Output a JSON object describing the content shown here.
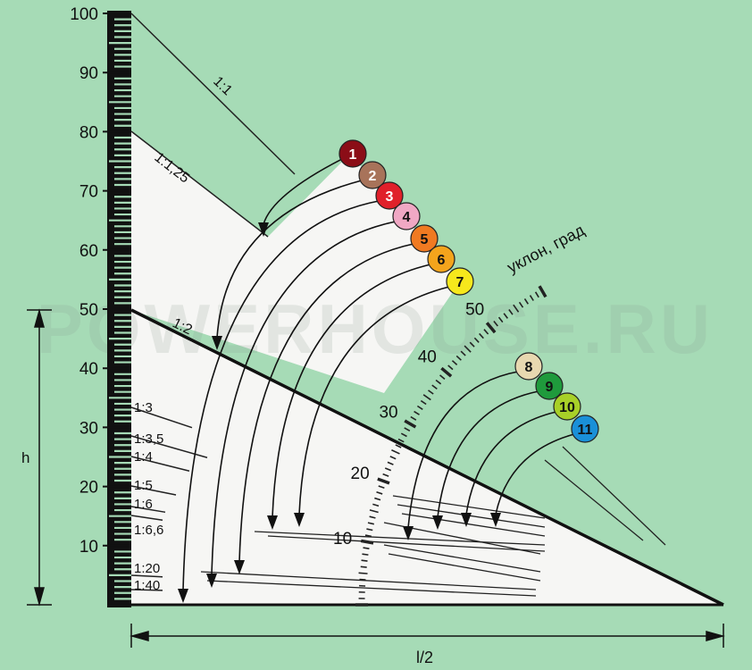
{
  "watermark": "POWERHOUSE.RU",
  "y_axis": {
    "ticks": [
      "10",
      "20",
      "30",
      "40",
      "50",
      "60",
      "70",
      "80",
      "90",
      "100"
    ]
  },
  "dimension_labels": {
    "height": "h",
    "half_span": "l/2"
  },
  "slopes": {
    "s1_1": "1:1",
    "s1_125": "1:1,25",
    "s1_2": "1:2",
    "s1_3": "1:3",
    "s1_35": "1:3,5",
    "s1_4": "1:4",
    "s1_5": "1:5",
    "s1_6": "1:6",
    "s1_66": "1:6,6",
    "s1_20": "1:20",
    "s1_40": "1:40"
  },
  "angle_scale": {
    "title": "уклон, град",
    "labels": [
      "10",
      "20",
      "30",
      "40",
      "50"
    ]
  },
  "markers": [
    {
      "label": "1",
      "color": "#8b0d17"
    },
    {
      "label": "2",
      "color": "#a8735a"
    },
    {
      "label": "3",
      "color": "#e0202a"
    },
    {
      "label": "4",
      "color": "#f0a8c4"
    },
    {
      "label": "5",
      "color": "#f07a22"
    },
    {
      "label": "6",
      "color": "#f4a41c"
    },
    {
      "label": "7",
      "color": "#f6e81c"
    },
    {
      "label": "8",
      "color": "#e8d8b0"
    },
    {
      "label": "9",
      "color": "#1f9a3c"
    },
    {
      "label": "10",
      "color": "#a8d028"
    },
    {
      "label": "11",
      "color": "#1a90d8"
    }
  ]
}
